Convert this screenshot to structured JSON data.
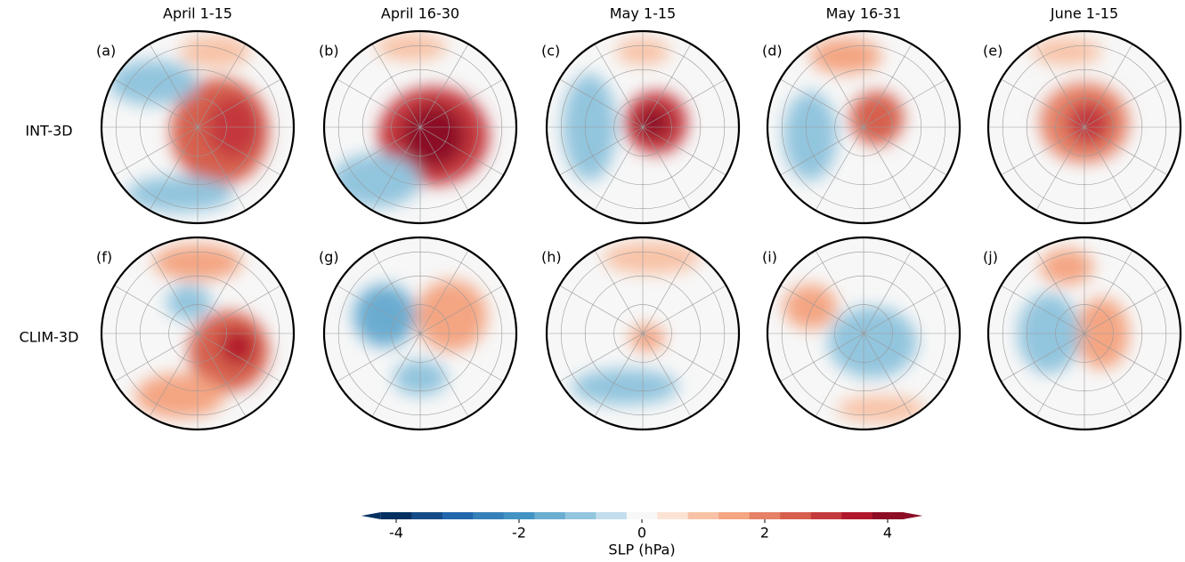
{
  "columns": [
    "April 1-15",
    "April 16-30",
    "May 1-15",
    "May 16-31",
    "June 1-15"
  ],
  "rows": [
    "INT-3D",
    "CLIM-3D"
  ],
  "panels": [
    "(a)",
    "(b)",
    "(c)",
    "(d)",
    "(e)",
    "(f)",
    "(g)",
    "(h)",
    "(i)",
    "(j)"
  ],
  "colorbar": {
    "label": "SLP (hPa)",
    "lim": [
      -4.25,
      4.25
    ],
    "ticks": [
      -4,
      -2,
      0,
      2,
      4
    ],
    "extend": "both",
    "colors": [
      "#053061",
      "#134b87",
      "#2166ac",
      "#3480b9",
      "#4393c3",
      "#6bacd1",
      "#92c5de",
      "#c2ddec",
      "#f7f7f7",
      "#fbe3d4",
      "#f8c2a6",
      "#f4a582",
      "#e58267",
      "#d6604d",
      "#c4393c",
      "#b2182b",
      "#8c0d25"
    ]
  }
}
